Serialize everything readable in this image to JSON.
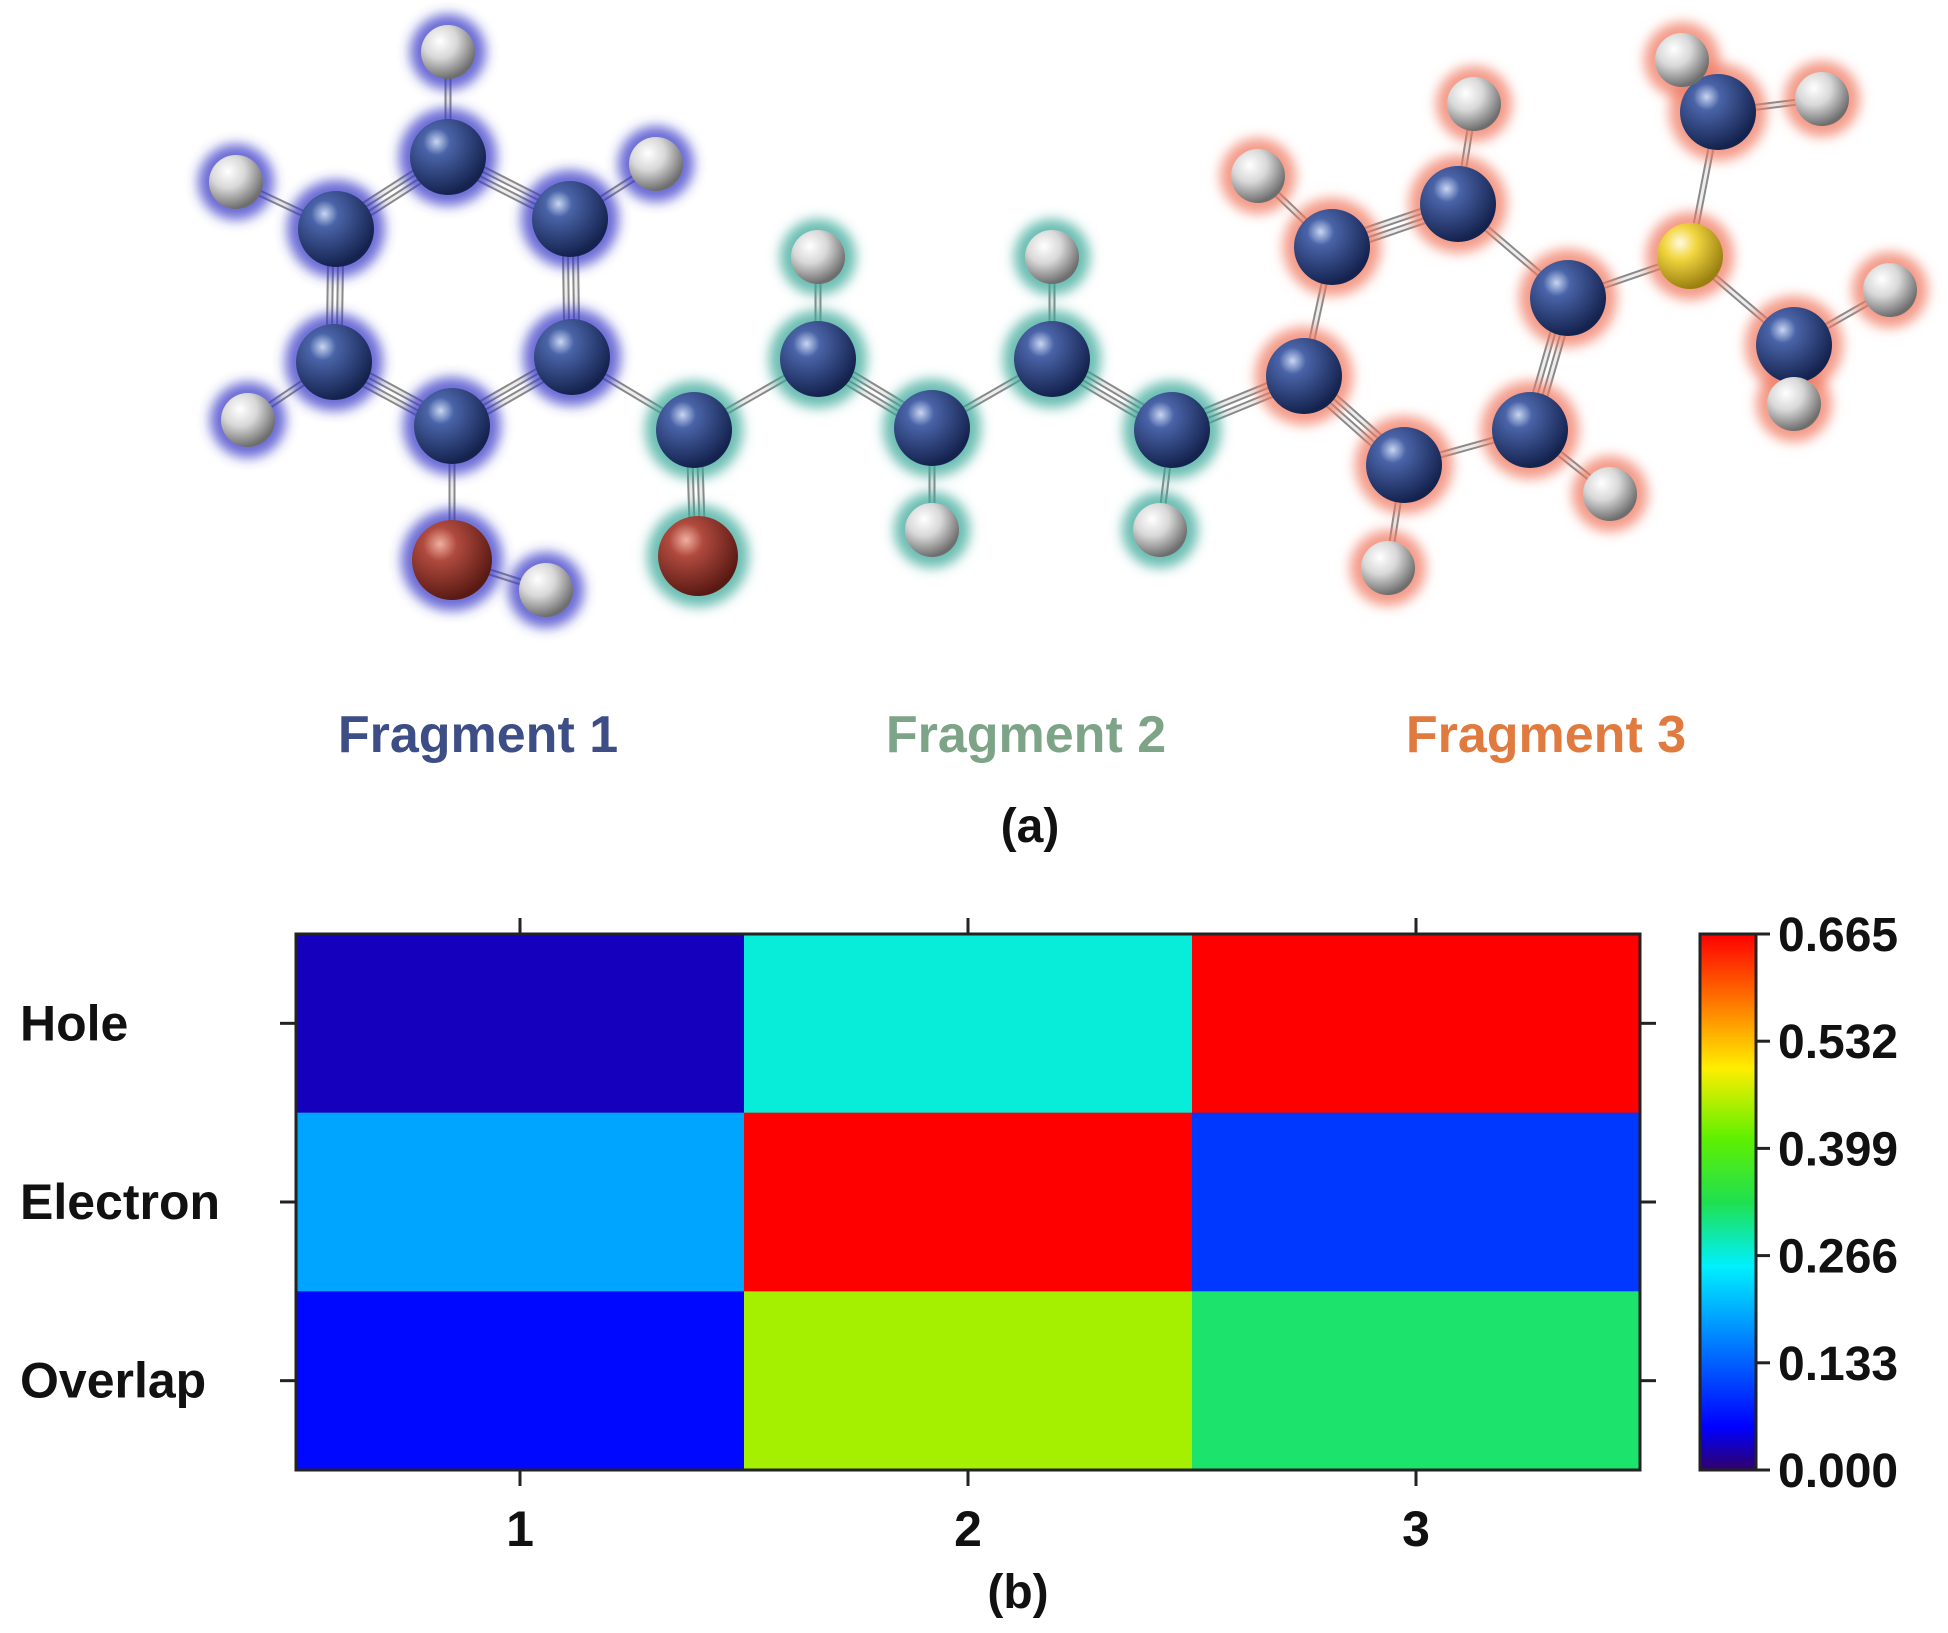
{
  "panel_a": {
    "fragments": [
      {
        "label": "Fragment 1",
        "color": "#3d4e86"
      },
      {
        "label": "Fragment 2",
        "color": "#7da487"
      },
      {
        "label": "Fragment 3",
        "color": "#e07a3e"
      }
    ],
    "caption": "(a)"
  },
  "panel_b": {
    "caption": "(b)"
  },
  "chart_data": {
    "type": "heatmap",
    "rows": [
      "Hole",
      "Electron",
      "Overlap"
    ],
    "columns": [
      "1",
      "2",
      "3"
    ],
    "values": [
      [
        0.03,
        0.27,
        0.665
      ],
      [
        0.19,
        0.665,
        0.1
      ],
      [
        0.06,
        0.45,
        0.32
      ]
    ],
    "colorbar": {
      "min": 0.0,
      "max": 0.665,
      "ticks": [
        "0.000",
        "0.133",
        "0.266",
        "0.399",
        "0.532",
        "0.665"
      ],
      "colormap": "rainbow"
    }
  }
}
